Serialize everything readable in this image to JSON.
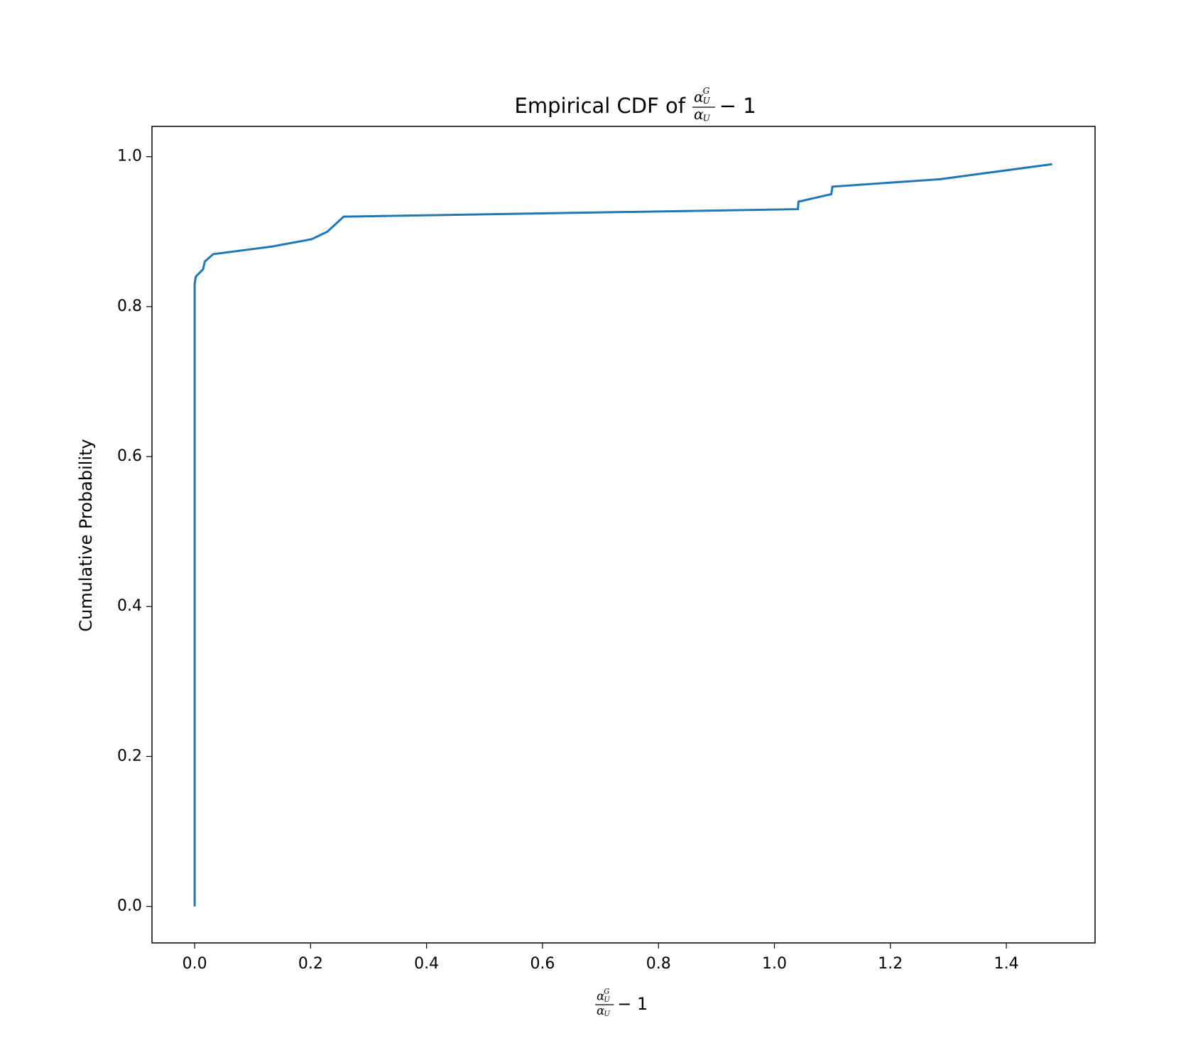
{
  "chart_data": {
    "type": "line",
    "title": "Empirical CDF of",
    "math": {
      "base": "α",
      "sup": "G",
      "sub": "U",
      "rest": "− 1"
    },
    "ylabel": "Cumulative Probability",
    "series": [
      {
        "color": "#1f77b4",
        "x": [
          0,
          0,
          0.002,
          0.0147,
          0.0174,
          0.032,
          0.1325,
          0.202,
          0.229,
          0.243,
          0.257,
          1.0405,
          1.0415,
          1.098,
          1.1,
          1.286,
          1.479
        ],
        "values": [
          0,
          0.83,
          0.84,
          0.85,
          0.86,
          0.87,
          0.88,
          0.89,
          0.9,
          0.91,
          0.92,
          0.93,
          0.94,
          0.95,
          0.96,
          0.97,
          0.99
        ]
      }
    ],
    "xlim": [
      -0.0736,
      1.553
    ],
    "ylim": [
      -0.0487,
      1.0404
    ],
    "xticks": [
      {
        "value": 0,
        "label": "0.0"
      },
      0.2,
      0.4,
      0.6,
      0.8,
      {
        "value": 1,
        "label": "1.0"
      },
      1.2,
      1.4
    ],
    "yticks": [
      {
        "value": 0,
        "label": "0.0"
      },
      0.2,
      0.4,
      0.6,
      0.8,
      {
        "value": 1,
        "label": "1.0"
      }
    ]
  }
}
